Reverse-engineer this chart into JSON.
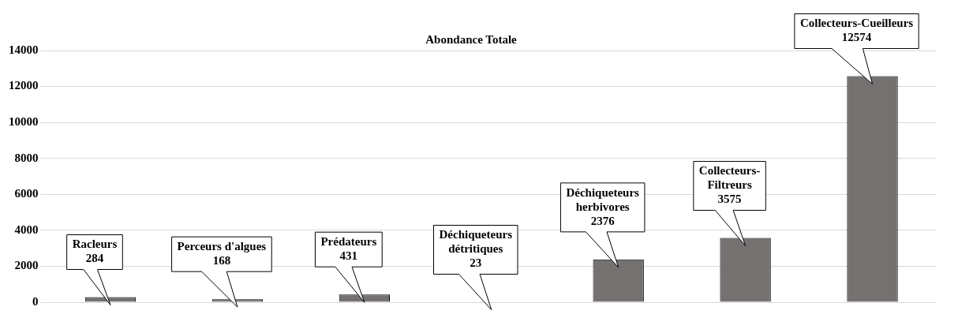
{
  "chart_data": {
    "type": "bar",
    "title": "Abondance Totale",
    "categories": [
      "Racleurs",
      "Perceurs d'algues",
      "Prédateurs",
      "Déchiqueteurs détritiques",
      "Déchiqueteurs herbivores",
      "Collecteurs- Filtreurs",
      "Collecteurs-Cueilleurs"
    ],
    "values": [
      284,
      168,
      431,
      23,
      2376,
      3575,
      12574
    ],
    "color": "#767171",
    "ylim": [
      0,
      14000
    ],
    "yticks": [
      0,
      2000,
      4000,
      6000,
      8000,
      10000,
      12000,
      14000
    ],
    "grid": "y",
    "tick_labels": "y",
    "data_labels": true
  }
}
